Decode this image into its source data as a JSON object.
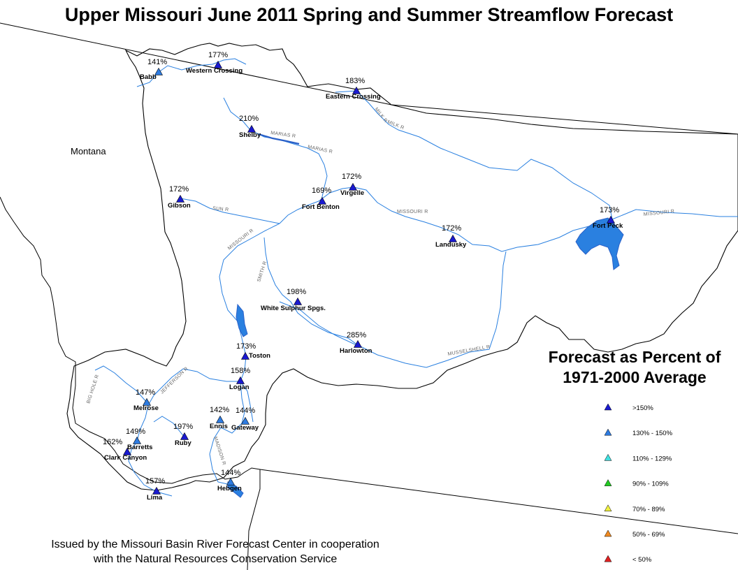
{
  "title": "Upper Missouri June 2011 Spring and Summer Streamflow Forecast",
  "state_label": "Montana",
  "legend": {
    "title_line1": "Forecast as Percent of",
    "title_line2": "1971-2000 Average",
    "classes": [
      {
        "label": ">150%",
        "color": "#1a1ad0"
      },
      {
        "label": "130% - 150%",
        "color": "#2e7be0"
      },
      {
        "label": "110% - 129%",
        "color": "#40e0e0"
      },
      {
        "label": "90% - 109%",
        "color": "#22cc22"
      },
      {
        "label": "70% - 89%",
        "color": "#f0f040"
      },
      {
        "label": "50% - 69%",
        "color": "#f08a20"
      },
      {
        "label": "< 50%",
        "color": "#e02020"
      }
    ]
  },
  "footer": {
    "line1": "Issued by the Missouri Basin River Forecast Center in cooperation",
    "line2": "with the Natural Resources Conservation Service"
  },
  "sites": [
    {
      "name": "Babb",
      "percent": "141%",
      "class": 1
    },
    {
      "name": "Western Crossing",
      "percent": "177%",
      "class": 0
    },
    {
      "name": "Eastern Crossing",
      "percent": "183%",
      "class": 0
    },
    {
      "name": "Shelby",
      "percent": "210%",
      "class": 0
    },
    {
      "name": "Gibson",
      "percent": "172%",
      "class": 0
    },
    {
      "name": "Virgelle",
      "percent": "172%",
      "class": 0
    },
    {
      "name": "Fort Benton",
      "percent": "169%",
      "class": 0
    },
    {
      "name": "Fort Peck",
      "percent": "173%",
      "class": 0
    },
    {
      "name": "Landusky",
      "percent": "172%",
      "class": 0
    },
    {
      "name": "White Sulphur Spgs.",
      "percent": "198%",
      "class": 0
    },
    {
      "name": "Harlowton",
      "percent": "285%",
      "class": 0
    },
    {
      "name": "Toston",
      "percent": "173%",
      "class": 0
    },
    {
      "name": "Logan",
      "percent": "158%",
      "class": 0
    },
    {
      "name": "Melrose",
      "percent": "147%",
      "class": 1
    },
    {
      "name": "Ennis",
      "percent": "142%",
      "class": 1
    },
    {
      "name": "Gateway",
      "percent": "144%",
      "class": 1
    },
    {
      "name": "Barretts",
      "percent": "149%",
      "class": 1
    },
    {
      "name": "Ruby",
      "percent": "197%",
      "class": 0
    },
    {
      "name": "Clark Canyon",
      "percent": "162%",
      "class": 0
    },
    {
      "name": "Lima",
      "percent": "157%",
      "class": 0
    },
    {
      "name": "Hebgen",
      "percent": "144%",
      "class": 1
    }
  ],
  "rivers": [
    "MILK R",
    "MILK R",
    "MARIAS R",
    "MARIAS R",
    "SUN R",
    "MISSOURI R",
    "MISSOURI R",
    "MISSOURI R",
    "SMITH R",
    "MUSSELSHELL R",
    "JEFFERSON R",
    "BIG HOLE R",
    "MADISON R"
  ]
}
